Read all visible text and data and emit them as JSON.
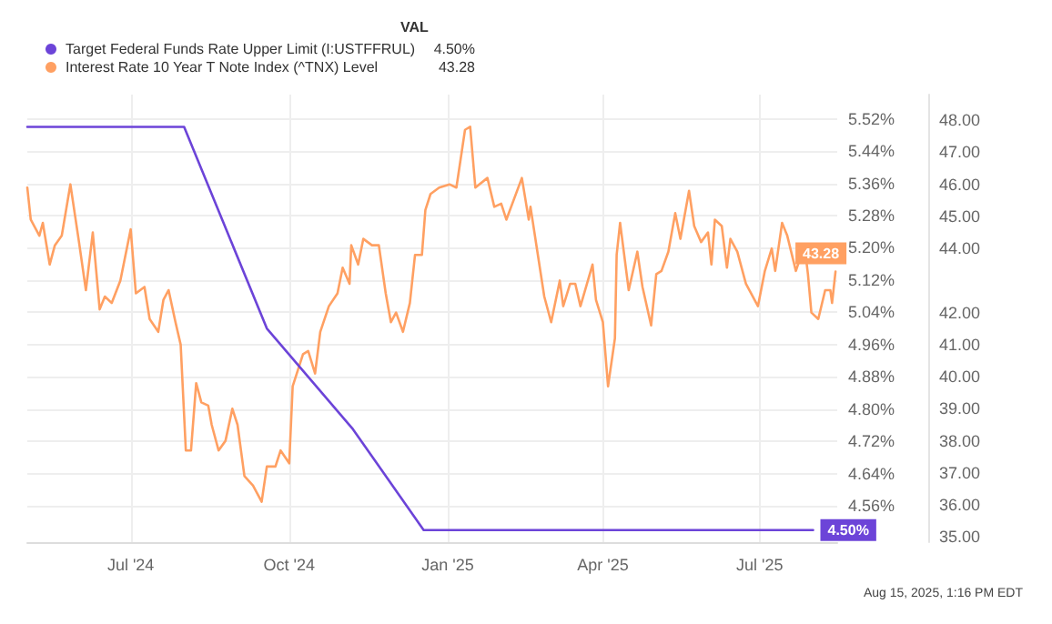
{
  "chart_data": {
    "type": "line",
    "legend_title": "VAL",
    "annotations": [
      "Aug 15, 2025, 1:16 PM EDT"
    ],
    "series": [
      {
        "name": "Target Federal Funds Rate Upper Limit (I:USTFFRUL)",
        "color": "#6c44d8",
        "x": [
          "2024-05-02",
          "2024-08-01",
          "2024-09-18",
          "2024-11-07",
          "2024-12-18",
          "2025-08-01"
        ],
        "values": [
          5.5,
          5.5,
          5.0,
          4.75,
          4.5,
          4.5
        ],
        "value_labels": [
          null,
          null,
          null,
          null,
          null,
          "4.50%"
        ]
      },
      {
        "name": "Interest Rate 10 Year T Note Index (^TNX) Level",
        "color": "#ffa062",
        "axis": "y2",
        "x": [
          "2024-05-02",
          "2024-05-04",
          "2024-05-09",
          "2024-05-11",
          "2024-05-15",
          "2024-05-18",
          "2024-05-22",
          "2024-05-27",
          "2024-06-01",
          "2024-06-05",
          "2024-06-09",
          "2024-06-13",
          "2024-06-16",
          "2024-06-20",
          "2024-06-25",
          "2024-07-01",
          "2024-07-04",
          "2024-07-09",
          "2024-07-12",
          "2024-07-17",
          "2024-07-20",
          "2024-07-23",
          "2024-07-27",
          "2024-07-30",
          "2024-08-02",
          "2024-08-05",
          "2024-08-08",
          "2024-08-11",
          "2024-08-15",
          "2024-08-17",
          "2024-08-21",
          "2024-08-25",
          "2024-08-29",
          "2024-09-01",
          "2024-09-05",
          "2024-09-10",
          "2024-09-15",
          "2024-09-18",
          "2024-09-23",
          "2024-09-26",
          "2024-10-01",
          "2024-10-03",
          "2024-10-09",
          "2024-10-12",
          "2024-10-16",
          "2024-10-19",
          "2024-10-24",
          "2024-10-29",
          "2024-11-01",
          "2024-11-05",
          "2024-11-06",
          "2024-11-10",
          "2024-11-13",
          "2024-11-18",
          "2024-11-22",
          "2024-11-26",
          "2024-11-29",
          "2024-12-02",
          "2024-12-06",
          "2024-12-10",
          "2024-12-13",
          "2024-12-17",
          "2024-12-19",
          "2024-12-22",
          "2024-12-27",
          "2025-01-02",
          "2025-01-06",
          "2025-01-11",
          "2025-01-14",
          "2025-01-17",
          "2025-01-24",
          "2025-01-28",
          "2025-02-01",
          "2025-02-04",
          "2025-02-13",
          "2025-02-17",
          "2025-02-18",
          "2025-02-22",
          "2025-02-26",
          "2025-03-02",
          "2025-03-07",
          "2025-03-09",
          "2025-03-13",
          "2025-03-16",
          "2025-03-19",
          "2025-03-26",
          "2025-03-28",
          "2025-04-01",
          "2025-04-04",
          "2025-04-08",
          "2025-04-09",
          "2025-04-11",
          "2025-04-16",
          "2025-04-21",
          "2025-04-24",
          "2025-04-29",
          "2025-05-02",
          "2025-05-05",
          "2025-05-09",
          "2025-05-13",
          "2025-05-16",
          "2025-05-21",
          "2025-05-24",
          "2025-05-28",
          "2025-06-01",
          "2025-06-03",
          "2025-06-05",
          "2025-06-09",
          "2025-06-12",
          "2025-06-14",
          "2025-06-18",
          "2025-06-23",
          "2025-06-30",
          "2025-07-04",
          "2025-07-08",
          "2025-07-10",
          "2025-07-14",
          "2025-07-17",
          "2025-07-22",
          "2025-07-27",
          "2025-07-29",
          "2025-07-31",
          "2025-08-04",
          "2025-08-08",
          "2025-08-11",
          "2025-08-12",
          "2025-08-14"
        ],
        "values": [
          45.9,
          44.9,
          44.4,
          44.8,
          43.5,
          44.1,
          44.4,
          46.0,
          44.2,
          42.7,
          44.5,
          42.1,
          42.5,
          42.3,
          43.0,
          44.6,
          42.6,
          42.8,
          41.8,
          41.4,
          42.4,
          42.7,
          41.7,
          41.0,
          37.7,
          37.7,
          39.8,
          39.2,
          39.1,
          38.5,
          37.7,
          38.0,
          39.0,
          38.5,
          36.9,
          36.6,
          36.1,
          37.2,
          37.2,
          37.7,
          37.3,
          39.7,
          40.7,
          40.8,
          40.1,
          41.4,
          42.2,
          42.6,
          43.4,
          42.9,
          44.1,
          43.5,
          44.3,
          44.1,
          44.1,
          42.6,
          41.7,
          42.0,
          41.4,
          42.3,
          43.8,
          43.8,
          45.2,
          45.7,
          45.9,
          46.0,
          45.9,
          47.7,
          47.8,
          45.9,
          46.2,
          45.3,
          45.4,
          44.9,
          46.2,
          44.9,
          45.3,
          43.9,
          42.5,
          41.7,
          43.0,
          42.2,
          42.9,
          42.9,
          42.2,
          43.5,
          42.4,
          41.7,
          39.7,
          41.2,
          43.8,
          44.8,
          42.7,
          43.9,
          42.8,
          41.6,
          43.2,
          43.3,
          43.9,
          45.1,
          44.3,
          45.8,
          44.7,
          44.2,
          44.5,
          43.5,
          44.9,
          44.7,
          43.4,
          44.3,
          43.9,
          42.9,
          42.2,
          43.3,
          44.0,
          43.3,
          44.8,
          44.4,
          43.3,
          44.1,
          43.2,
          42.0,
          41.8,
          42.7,
          42.7,
          42.3,
          43.28
        ],
        "value_labels": [
          null,
          null,
          null,
          null,
          null,
          null,
          null,
          null,
          null,
          null,
          null,
          null,
          null,
          null,
          null,
          null,
          null,
          null,
          null,
          null,
          null,
          null,
          null,
          null,
          null,
          null,
          null,
          null,
          null,
          null,
          null,
          null,
          null,
          null,
          null,
          null,
          null,
          null,
          null,
          null,
          null,
          null,
          null,
          null,
          null,
          null,
          null,
          null,
          null,
          null,
          null,
          null,
          null,
          null,
          null,
          null,
          null,
          null,
          null,
          null,
          null,
          null,
          null,
          null,
          null,
          null,
          null,
          null,
          null,
          null,
          null,
          null,
          null,
          null,
          null,
          null,
          null,
          null,
          null,
          null,
          null,
          null,
          null,
          null,
          null,
          null,
          null,
          null,
          null,
          null,
          null,
          null,
          null,
          null,
          null,
          null,
          null,
          null,
          null,
          null,
          null,
          null,
          null,
          null,
          null,
          null,
          null,
          null,
          null,
          null,
          null,
          null,
          null,
          null,
          null,
          null,
          null,
          null,
          null,
          null,
          null,
          null,
          null,
          null,
          null,
          null,
          "43.28"
        ]
      }
    ],
    "xlim": [
      "2024-05-02",
      "2025-08-15"
    ],
    "xticks": [
      {
        "value": "2024-07-01",
        "label": "Jul '24"
      },
      {
        "value": "2024-10-01",
        "label": "Oct '24"
      },
      {
        "value": "2025-01-01",
        "label": "Jan '25"
      },
      {
        "value": "2025-04-01",
        "label": "Apr '25"
      },
      {
        "value": "2025-07-01",
        "label": "Jul '25"
      }
    ],
    "ylim": [
      4.47,
      5.58
    ],
    "yticks": [
      {
        "value": 4.56,
        "label": "4.56%"
      },
      {
        "value": 4.64,
        "label": "4.64%"
      },
      {
        "value": 4.72,
        "label": "4.72%"
      },
      {
        "value": 4.8,
        "label": "4.80%"
      },
      {
        "value": 4.88,
        "label": "4.88%"
      },
      {
        "value": 4.96,
        "label": "4.96%"
      },
      {
        "value": 5.04,
        "label": "5.04%"
      },
      {
        "value": 5.12,
        "label": "5.12%"
      },
      {
        "value": 5.2,
        "label": "5.20%"
      },
      {
        "value": 5.28,
        "label": "5.28%"
      },
      {
        "value": 5.36,
        "label": "5.36%"
      },
      {
        "value": 5.44,
        "label": "5.44%"
      },
      {
        "value": 5.52,
        "label": "5.52%"
      }
    ],
    "y2lim": [
      34.84,
      48.8
    ],
    "y2ticks": [
      {
        "value": 35,
        "label": "35.00"
      },
      {
        "value": 36,
        "label": "36.00"
      },
      {
        "value": 37,
        "label": "37.00"
      },
      {
        "value": 38,
        "label": "38.00"
      },
      {
        "value": 39,
        "label": "39.00"
      },
      {
        "value": 40,
        "label": "40.00"
      },
      {
        "value": 41,
        "label": "41.00"
      },
      {
        "value": 42,
        "label": "42.00"
      },
      {
        "value": 44,
        "label": "44.00"
      },
      {
        "value": 45,
        "label": "45.00"
      },
      {
        "value": 46,
        "label": "46.00"
      },
      {
        "value": 47,
        "label": "47.00"
      },
      {
        "value": 48,
        "label": "48.00"
      }
    ],
    "grid": true,
    "legend": "top left",
    "marker": "none",
    "line_style": "solid"
  }
}
